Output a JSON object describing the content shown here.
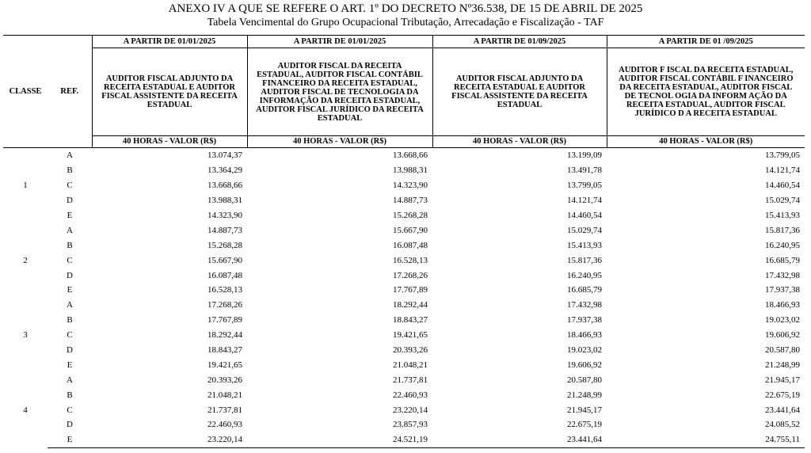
{
  "header": {
    "title": "ANEXO IV A QUE SE REFERE O ART. 1º DO DECRETO Nº36.538, DE 15 DE ABRIL DE 2025",
    "subtitle": "Tabela Vencimental do Grupo Ocupacional Tributação, Arrecadação e Fiscalização - TAF"
  },
  "table": {
    "class_header": "CLASSE",
    "ref_header": "REF.",
    "columns": [
      {
        "period": "A PARTIR DE 01/01/2025",
        "role": "AUDITOR FISCAL ADJUNTO DA RECEITA ESTADUAL E AUDITOR FISCAL ASSISTENTE DA RECEITA ESTADUAL",
        "unit": "40 HORAS - VALOR (R$)"
      },
      {
        "period": "A PARTIR DE 01/01/2025",
        "role": "AUDITOR FISCAL DA RECEITA ESTADUAL, AUDITOR FISCAL CONTÁBIL FINANCEIRO DA RECEITA ESTADUAL, AUDITOR FISCAL DE TECNOLOGIA DA INFORMAÇÃO DA RECEITA ESTADUAL, AUDITOR FISCAL JURÍDICO DA RECEITA ESTADUAL",
        "unit": "40 HORAS - VALOR (R$)"
      },
      {
        "period": "A PARTIR DE 01/09/2025",
        "role": "AUDITOR FISCAL ADJUNTO DA RECEITA ESTADUAL E AUDITOR FISCAL ASSISTENTE DA RECEITA ESTADUAL",
        "unit": "40 HORAS - VALOR (R$)"
      },
      {
        "period": "A PARTIR DE 01 /09/2025",
        "role": "AUDITOR F ISCAL DA RECEITA ESTADUAL, AUDITOR FISCAL CONTÁBIL F INANCEIRO DA RECEITA ESTADUAL, AUDITOR FISCAL DE TECNOL OGIA DA INFORM AÇÃO DA RECEITA ESTADUAL, AUDITOR FISCAL JURÍDICO D A RECEITA ESTADUAL",
        "unit": "40 HORAS - VALOR (R$)"
      }
    ],
    "classes": [
      {
        "label": "1",
        "rows": [
          {
            "ref": "A",
            "values": [
              "13.074,37",
              "13.668,66",
              "13.199,09",
              "13.799,05"
            ]
          },
          {
            "ref": "B",
            "values": [
              "13.364,29",
              "13.988,31",
              "13.491,78",
              "14.121,74"
            ]
          },
          {
            "ref": "C",
            "values": [
              "13.668,66",
              "14.323,90",
              "13.799,05",
              "14.460,54"
            ]
          },
          {
            "ref": "D",
            "values": [
              "13.988,31",
              "14.887,73",
              "14.121,74",
              "15.029,74"
            ]
          },
          {
            "ref": "E",
            "values": [
              "14.323,90",
              "15.268,28",
              "14.460,54",
              "15.413,93"
            ]
          }
        ]
      },
      {
        "label": "2",
        "rows": [
          {
            "ref": "A",
            "values": [
              "14.887,73",
              "15.667,90",
              "15.029,74",
              "15.817,36"
            ]
          },
          {
            "ref": "B",
            "values": [
              "15.268,28",
              "16.087,48",
              "15.413,93",
              "16.240,95"
            ]
          },
          {
            "ref": "C",
            "values": [
              "15.667,90",
              "16.528,13",
              "15.817,36",
              "16.685,79"
            ]
          },
          {
            "ref": "D",
            "values": [
              "16.087,48",
              "17.268,26",
              "16.240,95",
              "17.432,98"
            ]
          },
          {
            "ref": "E",
            "values": [
              "16.528,13",
              "17.767,89",
              "16.685,79",
              "17.937,38"
            ]
          }
        ]
      },
      {
        "label": "3",
        "rows": [
          {
            "ref": "A",
            "values": [
              "17.268,26",
              "18.292,44",
              "17.432,98",
              "18.466,93"
            ]
          },
          {
            "ref": "B",
            "values": [
              "17.767,89",
              "18.843,27",
              "17.937,38",
              "19.023,02"
            ]
          },
          {
            "ref": "C",
            "values": [
              "18.292,44",
              "19.421,65",
              "18.466,93",
              "19.606,92"
            ]
          },
          {
            "ref": "D",
            "values": [
              "18.843,27",
              "20.393,26",
              "19.023,02",
              "20.587,80"
            ]
          },
          {
            "ref": "E",
            "values": [
              "19.421,65",
              "21.048,21",
              "19.606,92",
              "21.248,99"
            ]
          }
        ]
      },
      {
        "label": "4",
        "rows": [
          {
            "ref": "A",
            "values": [
              "20.393,26",
              "21.737,81",
              "20.587,80",
              "21.945,17"
            ]
          },
          {
            "ref": "B",
            "values": [
              "21.048,21",
              "22.460,93",
              "21.248,99",
              "22.675,19"
            ]
          },
          {
            "ref": "C",
            "values": [
              "21.737,81",
              "23.220,14",
              "21.945,17",
              "23.441,64"
            ]
          },
          {
            "ref": "D",
            "values": [
              "22.460,93",
              "23.857,93",
              "22.675,19",
              "24.085,52"
            ]
          },
          {
            "ref": "E",
            "values": [
              "23.220,14",
              "24.521,19",
              "23.441,64",
              "24.755,11"
            ]
          }
        ]
      }
    ]
  }
}
